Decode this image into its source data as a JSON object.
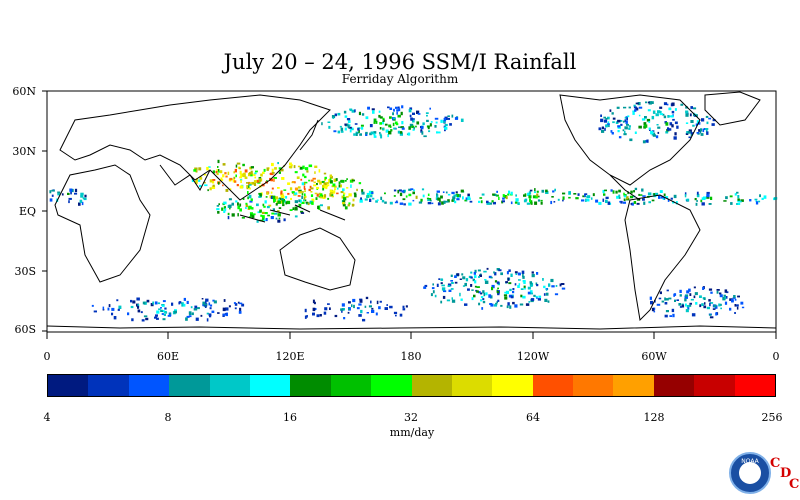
{
  "title": "July 20 – 24, 1996 SSM/I Rainfall",
  "subtitle": "Ferriday Algorithm",
  "latitude_labels": [
    "60N",
    "30N",
    "EQ",
    "30S",
    "60S"
  ],
  "longitude_labels": [
    "0",
    "60E",
    "120E",
    "180",
    "120W",
    "60W",
    "0"
  ],
  "colorbar": {
    "colors": [
      "#001a80",
      "#0033bb",
      "#0055ff",
      "#009999",
      "#00c8c8",
      "#00ffff",
      "#008c00",
      "#00c000",
      "#00ff00",
      "#b4b400",
      "#dcdc00",
      "#ffff00",
      "#ff5000",
      "#ff7800",
      "#ffa000",
      "#960000",
      "#c80000",
      "#ff0000"
    ],
    "tick_labels": [
      "4",
      "8",
      "16",
      "32",
      "64",
      "128",
      "256"
    ],
    "units": "mm/day"
  },
  "logo": {
    "agency": "NOAA",
    "letters": [
      "C",
      "D",
      "C"
    ]
  },
  "chart_data": {
    "type": "heatmap",
    "title": "July 20 – 24, 1996 SSM/I Rainfall",
    "subtitle": "Ferriday Algorithm",
    "colorbar_label": "mm/day",
    "colorbar_scale": "log2",
    "colorbar_range": [
      4,
      256
    ],
    "x_ticks": [
      "0",
      "60E",
      "120E",
      "180",
      "120W",
      "60W",
      "0"
    ],
    "y_ticks": [
      "60N",
      "30N",
      "EQ",
      "30S",
      "60S"
    ],
    "xlim": [
      0,
      360
    ],
    "ylim": [
      -60,
      60
    ],
    "rain_regions": [
      {
        "lon": 120,
        "lat": 15,
        "rx": 25,
        "ry": 10,
        "level": 110
      },
      {
        "lon": 88,
        "lat": 18,
        "rx": 18,
        "ry": 8,
        "level": 90
      },
      {
        "lon": 140,
        "lat": 10,
        "rx": 20,
        "ry": 8,
        "level": 70
      },
      {
        "lon": 105,
        "lat": 2,
        "rx": 22,
        "ry": 7,
        "level": 40
      },
      {
        "lon": 180,
        "lat": 8,
        "rx": 30,
        "ry": 4,
        "level": 30
      },
      {
        "lon": 230,
        "lat": 8,
        "rx": 40,
        "ry": 4,
        "level": 35
      },
      {
        "lon": 285,
        "lat": 8,
        "rx": 25,
        "ry": 4,
        "level": 30
      },
      {
        "lon": 330,
        "lat": 7,
        "rx": 30,
        "ry": 3,
        "level": 25
      },
      {
        "lon": 10,
        "lat": 8,
        "rx": 12,
        "ry": 4,
        "level": 20
      },
      {
        "lon": 170,
        "lat": 45,
        "rx": 35,
        "ry": 8,
        "level": 25
      },
      {
        "lon": 300,
        "lat": 45,
        "rx": 30,
        "ry": 10,
        "level": 20
      },
      {
        "lon": 60,
        "lat": -48,
        "rx": 40,
        "ry": 6,
        "level": 14
      },
      {
        "lon": 220,
        "lat": -38,
        "rx": 35,
        "ry": 10,
        "level": 20
      },
      {
        "lon": 320,
        "lat": -45,
        "rx": 25,
        "ry": 8,
        "level": 14
      },
      {
        "lon": 150,
        "lat": -48,
        "rx": 30,
        "ry": 6,
        "level": 10
      }
    ]
  }
}
